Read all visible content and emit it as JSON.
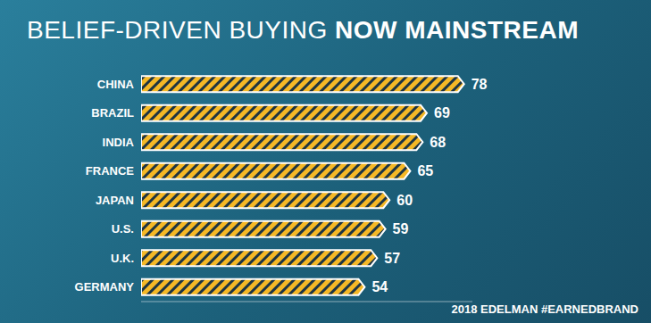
{
  "chart_data": {
    "type": "bar",
    "orientation": "horizontal",
    "title": "BELIEF-DRIVEN BUYING NOW MAINSTREAM",
    "annotations": [
      "2018 EDELMAN #EARNEDBRAND"
    ],
    "categories": [
      "CHINA",
      "BRAZIL",
      "INDIA",
      "FRANCE",
      "JAPAN",
      "U.S.",
      "U.K.",
      "GERMANY"
    ],
    "values": [
      78,
      69,
      68,
      65,
      60,
      59,
      57,
      54
    ],
    "color": "#f5b826",
    "xlim": [
      0,
      80
    ],
    "grid": false,
    "data_labels": true,
    "tick_labels": "y"
  }
}
